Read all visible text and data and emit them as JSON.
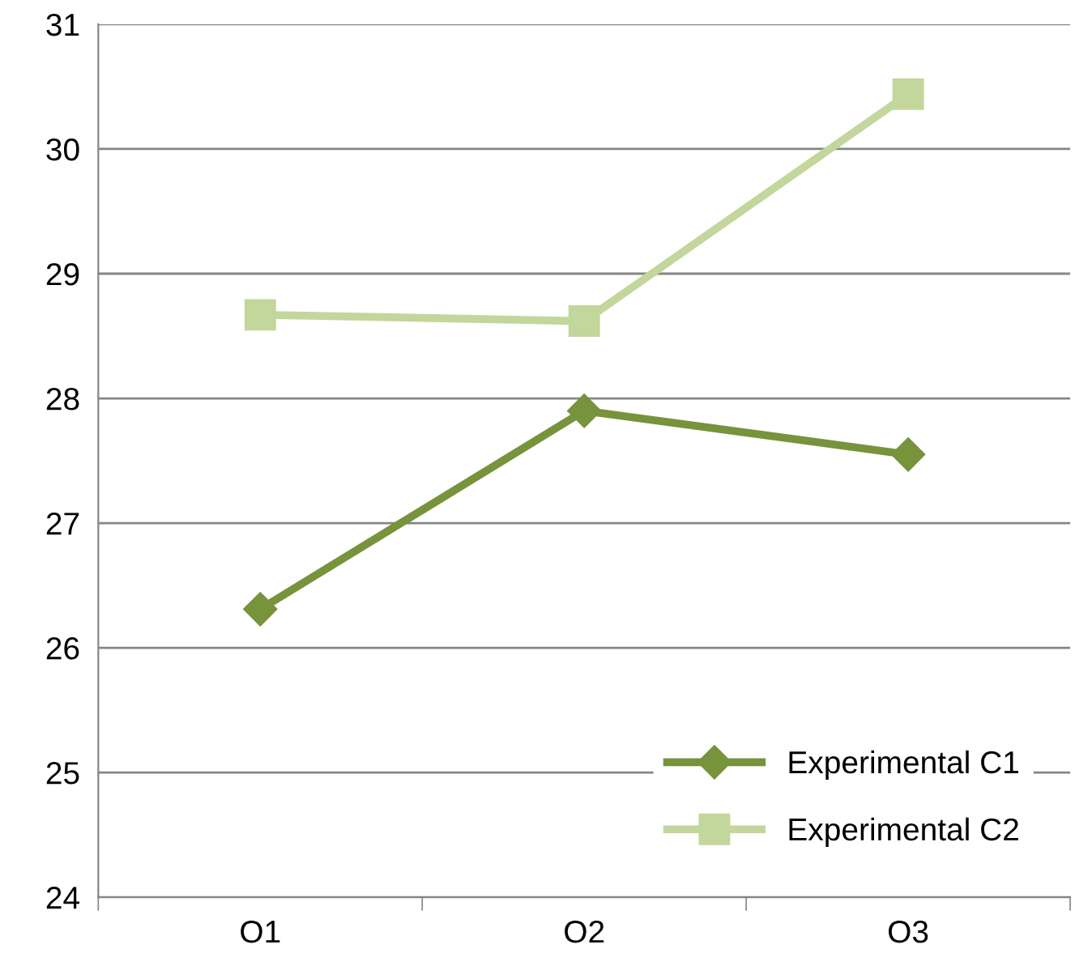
{
  "chart_data": {
    "type": "line",
    "categories": [
      "O1",
      "O2",
      "O3"
    ],
    "series": [
      {
        "name": "Experimental C1",
        "color": "#77933c",
        "values": [
          26.31,
          27.9,
          27.55
        ],
        "marker": "diamond"
      },
      {
        "name": "Experimental C2",
        "color": "#c3d69b",
        "values": [
          28.67,
          28.62,
          30.44
        ],
        "marker": "square"
      }
    ],
    "ylim": [
      24,
      31
    ],
    "yticks": [
      24,
      25,
      26,
      27,
      28,
      29,
      30,
      31
    ],
    "grid": "y",
    "legend": "bottom right",
    "line_style": "solid"
  }
}
